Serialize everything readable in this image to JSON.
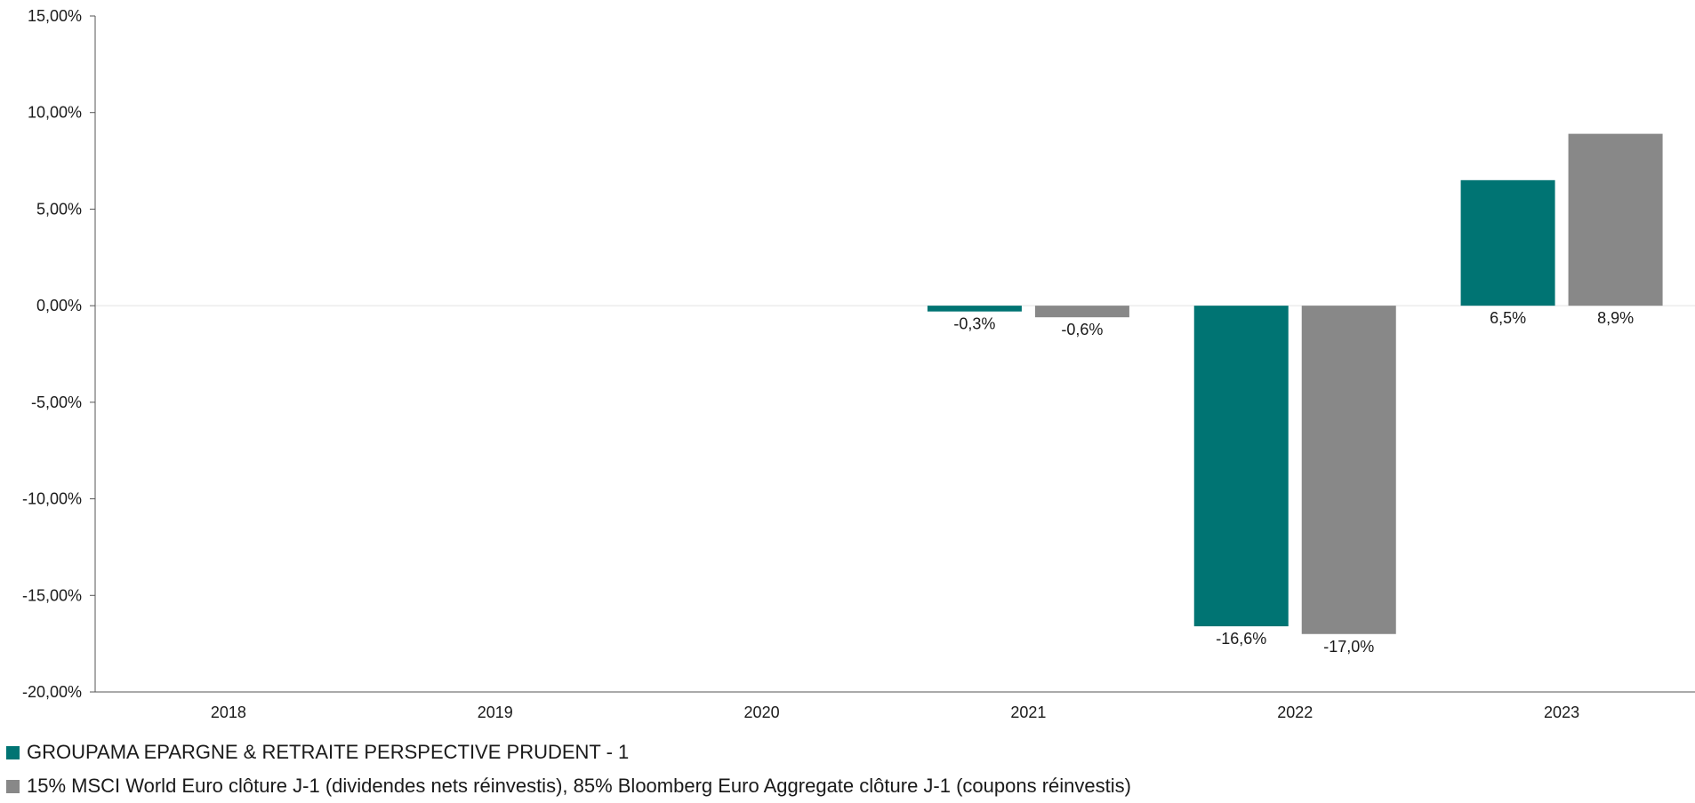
{
  "chart_data": {
    "type": "bar",
    "title": "",
    "xlabel": "",
    "ylabel": "",
    "categories": [
      "2018",
      "2019",
      "2020",
      "2021",
      "2022",
      "2023"
    ],
    "ylim": [
      -20,
      15
    ],
    "yticks": [
      {
        "value": 15,
        "label": "15,00%"
      },
      {
        "value": 10,
        "label": "10,00%"
      },
      {
        "value": 5,
        "label": "5,00%"
      },
      {
        "value": 0,
        "label": "0,00%"
      },
      {
        "value": -5,
        "label": "-5,00%"
      },
      {
        "value": -10,
        "label": "-10,00%"
      },
      {
        "value": -15,
        "label": "-15,00%"
      },
      {
        "value": -20,
        "label": "-20,00%"
      }
    ],
    "grid": false,
    "legend_position": "bottom-left",
    "series": [
      {
        "name": "GROUPAMA EPARGNE & RETRAITE PERSPECTIVE PRUDENT - 1",
        "color": "#007473",
        "values": [
          null,
          null,
          null,
          -0.3,
          -16.6,
          6.5
        ],
        "labels": [
          "",
          "",
          "",
          "-0,3%",
          "-16,6%",
          "6,5%"
        ]
      },
      {
        "name": "15% MSCI World Euro clôture J-1 (dividendes nets réinvestis), 85% Bloomberg Euro Aggregate clôture J-1 (coupons réinvestis)",
        "color": "#888888",
        "values": [
          null,
          null,
          null,
          -0.6,
          -17.0,
          8.9
        ],
        "labels": [
          "",
          "",
          "",
          "-0,6%",
          "-17,0%",
          "8,9%"
        ]
      }
    ]
  }
}
